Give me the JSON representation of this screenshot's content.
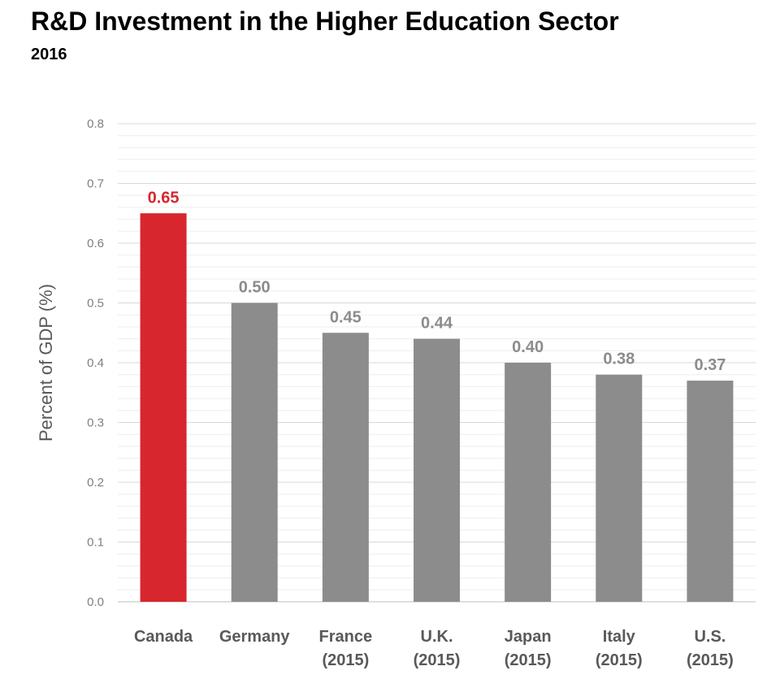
{
  "chart_data": {
    "type": "bar",
    "title": "R&D Investment in the Higher Education Sector",
    "subtitle": "2016",
    "xlabel": "",
    "ylabel": "Percent of GDP (%)",
    "ylim": [
      0,
      0.8
    ],
    "yticks": [
      "0.0",
      "0.1",
      "0.2",
      "0.3",
      "0.4",
      "0.5",
      "0.6",
      "0.7",
      "0.8"
    ],
    "categories": [
      [
        "Canada"
      ],
      [
        "Germany"
      ],
      [
        "France",
        "(2015)"
      ],
      [
        "U.K.",
        "(2015)"
      ],
      [
        "Japan",
        "(2015)"
      ],
      [
        "Italy",
        "(2015)"
      ],
      [
        "U.S.",
        "(2015)"
      ]
    ],
    "values": [
      0.65,
      0.5,
      0.45,
      0.44,
      0.4,
      0.38,
      0.37
    ],
    "value_labels": [
      "0.65",
      "0.50",
      "0.45",
      "0.44",
      "0.40",
      "0.38",
      "0.37"
    ],
    "colors": [
      "#d7262d",
      "#8c8c8c",
      "#8c8c8c",
      "#8c8c8c",
      "#8c8c8c",
      "#8c8c8c",
      "#8c8c8c"
    ],
    "label_colors": [
      "#d7262d",
      "#8c8c8c",
      "#8c8c8c",
      "#8c8c8c",
      "#8c8c8c",
      "#8c8c8c",
      "#8c8c8c"
    ],
    "grid": true,
    "legend": "none"
  }
}
